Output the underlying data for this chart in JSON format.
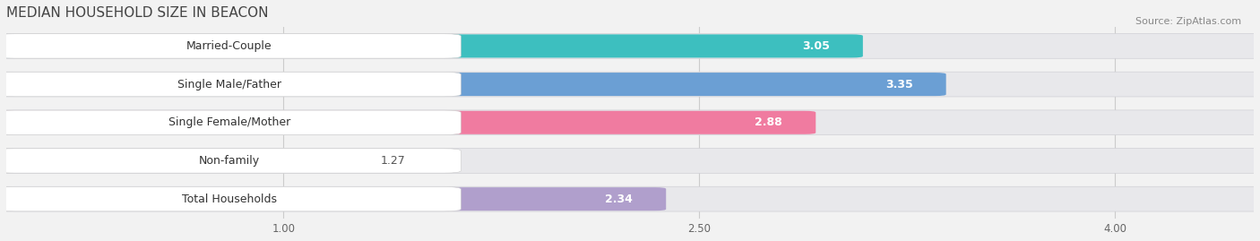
{
  "title": "MEDIAN HOUSEHOLD SIZE IN BEACON",
  "source": "Source: ZipAtlas.com",
  "categories": [
    "Married-Couple",
    "Single Male/Father",
    "Single Female/Mother",
    "Non-family",
    "Total Households"
  ],
  "values": [
    3.05,
    3.35,
    2.88,
    1.27,
    2.34
  ],
  "colors": [
    "#3DBFBF",
    "#6B9FD4",
    "#F07BA0",
    "#F5C490",
    "#B09FCC"
  ],
  "value_text_colors": [
    "white",
    "white",
    "white",
    "black",
    "black"
  ],
  "xlim_min": 0.0,
  "xlim_max": 4.5,
  "xscale_min": 1.0,
  "xscale_max": 4.0,
  "xticks": [
    1.0,
    2.5,
    4.0
  ],
  "xtick_labels": [
    "1.00",
    "2.50",
    "4.00"
  ],
  "bar_height": 0.62,
  "background_color": "#f2f2f2",
  "row_bg_color": "#e8e8e8",
  "title_fontsize": 11,
  "label_fontsize": 9,
  "value_fontsize": 9,
  "source_fontsize": 8
}
